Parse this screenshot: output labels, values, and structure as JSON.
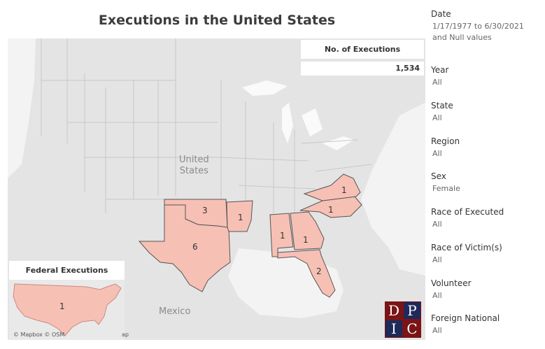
{
  "title": "Executions in the United States",
  "count_panel": {
    "header": "No. of Executions",
    "value": "1,534"
  },
  "map": {
    "country_labels": {
      "us_line1": "United",
      "us_line2": "States",
      "mexico": "Mexico"
    },
    "highlight_color": "#f7c0b5",
    "states": [
      {
        "name": "Texas",
        "value": "6"
      },
      {
        "name": "Oklahoma",
        "value": "3"
      },
      {
        "name": "Arkansas",
        "value": "1"
      },
      {
        "name": "Alabama",
        "value": "1"
      },
      {
        "name": "Georgia",
        "value": "1"
      },
      {
        "name": "Florida",
        "value": "2"
      },
      {
        "name": "North Carolina",
        "value": "1"
      },
      {
        "name": "Virginia",
        "value": "1"
      }
    ],
    "attribution": "© Mapbox © OSM",
    "attribution_tail": "ap"
  },
  "federal": {
    "title": "Federal Executions",
    "value": "1"
  },
  "logo": {
    "letters": [
      "D",
      "P",
      "I",
      "C"
    ]
  },
  "filters": [
    {
      "label": "Date",
      "value": "1/17/1977 to 6/30/2021",
      "value2": "and Null values"
    },
    {
      "label": "Year",
      "value": "All"
    },
    {
      "label": "State",
      "value": "All"
    },
    {
      "label": "Region",
      "value": "All"
    },
    {
      "label": "Sex",
      "value": "Female"
    },
    {
      "label": "Race of Executed",
      "value": "All"
    },
    {
      "label": "Race of Victim(s)",
      "value": "All"
    },
    {
      "label": "Volunteer",
      "value": "All"
    },
    {
      "label": "Foreign National",
      "value": "All"
    }
  ]
}
